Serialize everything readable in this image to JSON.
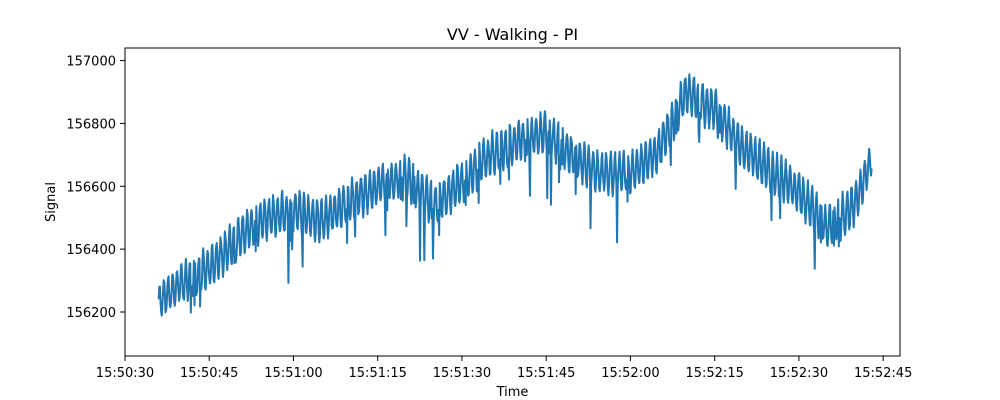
{
  "chart_data": {
    "type": "line",
    "title": "VV - Walking - PI",
    "xlabel": "Time",
    "ylabel": "Signal",
    "x_axis_type": "time",
    "xlim": [
      "15:50:30",
      "15:52:48"
    ],
    "ylim": [
      156060,
      157040
    ],
    "xticks": [
      "15:50:30",
      "15:50:45",
      "15:51:00",
      "15:51:15",
      "15:51:30",
      "15:51:45",
      "15:52:00",
      "15:52:15",
      "15:52:30",
      "15:52:45"
    ],
    "yticks": [
      156200,
      156400,
      156600,
      156800,
      157000
    ],
    "grid": false,
    "series": [
      {
        "color": "#1f77b4",
        "x": [
          "15:50:36",
          "15:50:40",
          "15:50:45",
          "15:50:50",
          "15:50:55",
          "15:51:00",
          "15:51:05",
          "15:51:10",
          "15:51:15",
          "15:51:20",
          "15:51:25",
          "15:51:30",
          "15:51:35",
          "15:51:40",
          "15:51:45",
          "15:51:50",
          "15:51:55",
          "15:52:00",
          "15:52:05",
          "15:52:10",
          "15:52:15",
          "15:52:20",
          "15:52:25",
          "15:52:30",
          "15:52:35",
          "15:52:40",
          "15:52:43"
        ],
        "values": [
          156230,
          156290,
          156340,
          156430,
          156500,
          156520,
          156490,
          156550,
          156600,
          156630,
          156540,
          156610,
          156700,
          156740,
          156770,
          156690,
          156640,
          156640,
          156710,
          156900,
          156840,
          156720,
          156650,
          156580,
          156470,
          156540,
          156690
        ],
        "amplitude": [
          130,
          140,
          150,
          150,
          150,
          150,
          150,
          150,
          150,
          150,
          150,
          150,
          150,
          150,
          150,
          150,
          150,
          150,
          150,
          150,
          150,
          150,
          150,
          150,
          160,
          150,
          100
        ]
      }
    ]
  }
}
